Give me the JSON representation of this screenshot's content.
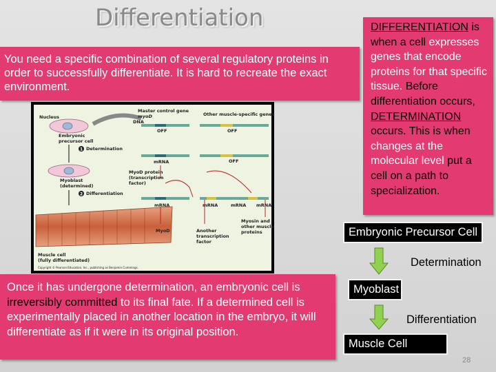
{
  "title": "Differentiation",
  "intro_box": {
    "text": "You  need a specific combination of several regulatory proteins in order to successfully differentiate.  It is hard to recreate the exact environment."
  },
  "definition_box": {
    "segments": [
      {
        "text": "DIFFERENTIATION",
        "style": "underline"
      },
      {
        "text": " is when a cell ",
        "style": "plain"
      },
      {
        "text": "expresses genes that encode proteins for that specific tissue.",
        "style": "white"
      },
      {
        "text": "  Before differentiation occurs, ",
        "style": "plain"
      },
      {
        "text": "DETERMINATION",
        "style": "underline"
      },
      {
        "text": " occurs.  This is when ",
        "style": "plain"
      },
      {
        "text": "changes at the molecular level",
        "style": "white"
      },
      {
        "text": " put a cell on a path to specialization.",
        "style": "plain"
      }
    ]
  },
  "figure": {
    "nucleus": "Nucleus",
    "master_gene": "Master control gene",
    "myod_gene": "myoD",
    "other_genes": "Other muscle-specific genes",
    "dna": "DNA",
    "off_1": "OFF",
    "off_2": "OFF",
    "off_3": "OFF",
    "precursor_1": "Embryonic",
    "precursor_2": "precursor cell",
    "step_1_number": "1",
    "step_1": "Determination",
    "mrna_1": "mRNA",
    "protein_1": "MyoD protein",
    "protein_2": "(transcription",
    "protein_3": "factor)",
    "myoblast_1": "Myoblast",
    "myoblast_2": "(determined)",
    "step_2_number": "2",
    "step_2": "Differentiation",
    "mrna_2": "mRNA",
    "mrna_3": "mRNA",
    "mrna_4": "mRNA",
    "mrna_5": "mRNA",
    "myod": "MyoD",
    "another_1": "Another",
    "another_2": "transcription",
    "another_3": "factor",
    "myosin_1": "Myosin and",
    "myosin_2": "other muscle",
    "myosin_3": "proteins",
    "muscle_1": "Muscle cell",
    "muscle_2": "(fully differentiated)",
    "copyright": "Copyright © Pearson Education, Inc., publishing as Benjamin Cummings."
  },
  "note_box": {
    "segments": [
      {
        "text": "Once it has undergone determination, an embryonic cell is ",
        "style": "plain"
      },
      {
        "text": "irreversibly committed",
        "style": "dark"
      },
      {
        "text": " to its final fate.  If a determined cell is experimentally placed in another location in the embryo, it will differentiate as if it were in its original position.",
        "style": "plain"
      }
    ]
  },
  "flow": {
    "step_1": "Embryonic Precursor Cell",
    "transition_1": "Determination",
    "step_2": "Myoblast",
    "transition_2": "Differentiation",
    "step_3": "Muscle Cell"
  },
  "page_number": "28"
}
